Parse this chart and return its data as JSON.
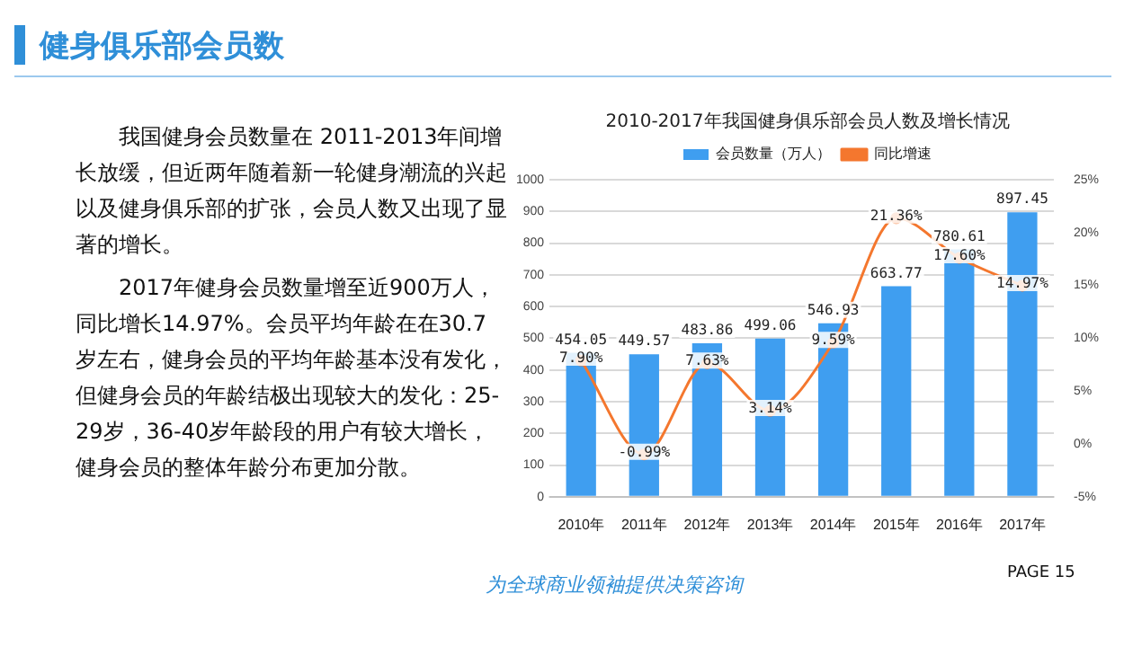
{
  "chart_data": {
    "type": "bar",
    "title": "健身俱乐部会员数",
    "subtitle": "2010-2017年我国健身俱乐部会员人数及增长情况",
    "categories": [
      "2010年",
      "2011年",
      "2012年",
      "2013年",
      "2014年",
      "2015年",
      "2016年",
      "2017年"
    ],
    "series": [
      {
        "name": "会员数量（万人）",
        "color": "#3f9ef0",
        "values": [
          454.05,
          449.57,
          483.86,
          499.06,
          546.93,
          663.77,
          780.61,
          897.45
        ],
        "value_labels": [
          "454.05",
          "449.57",
          "483.86",
          "499.06",
          "546.93",
          "663.77",
          "780.61",
          "897.45"
        ]
      },
      {
        "name": "同比增速",
        "type": "line",
        "axis": "y2",
        "color": "#f4772e",
        "values": [
          7.9,
          -0.99,
          7.63,
          3.14,
          9.59,
          21.36,
          17.6,
          14.97
        ],
        "value_labels": [
          "7.90%",
          "-0.99%",
          "7.63%",
          "3.14%",
          "9.59%",
          "21.36%",
          "17.60%",
          "14.97%"
        ]
      }
    ],
    "ylim": [
      0,
      1000
    ],
    "yticks": [
      0,
      100,
      200,
      300,
      400,
      500,
      600,
      700,
      800,
      900,
      1000
    ],
    "y2lim": [
      -5,
      25
    ],
    "y2ticks": [
      {
        "value": -5,
        "label": "-5%"
      },
      {
        "value": 0,
        "label": "0%"
      },
      {
        "value": 5,
        "label": "5%"
      },
      {
        "value": 10,
        "label": "10%"
      },
      {
        "value": 15,
        "label": "15%"
      },
      {
        "value": 20,
        "label": "20%"
      },
      {
        "value": 25,
        "label": "25%"
      }
    ],
    "grid": "y",
    "legend": "top",
    "marker": "circle",
    "annotations": [
      "我国健身会员数量在 2011-2013年间增长放缓，但近两年随着新一轮健身潮流的兴起以及健身俱乐部的扩张，会员人数又出现了显著的增长。",
      "2017年健身会员数量增至近900万人，同比增长14.97%。会员平均年龄在在30.7岁左右，健身会员的平均年龄基本没有发化，但健身会员的年龄结极出现较大的发化：25-29岁，36-40岁年龄段的用户有较大增长，健身会员的整体年龄分布更加分散。",
      "为全球商业领袖提供决策咨询",
      "PAGE  15"
    ]
  }
}
